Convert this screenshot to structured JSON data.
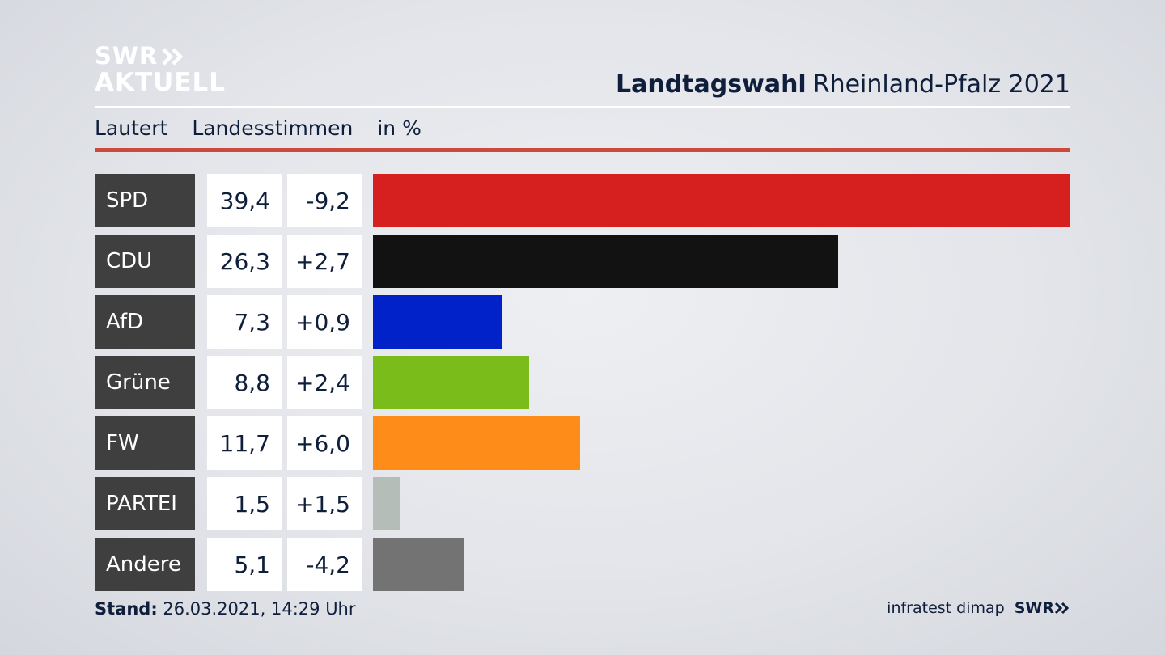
{
  "header": {
    "logo_line1": "SWR",
    "logo_line2": "AKTUELL",
    "title_bold": "Landtagswahl",
    "title_rest": "Rheinland-Pfalz 2021"
  },
  "subheader": {
    "region": "Lautert",
    "vote_type": "Landesstimmen",
    "unit": "in %"
  },
  "chart_data": {
    "type": "bar",
    "categories": [
      "SPD",
      "CDU",
      "AfD",
      "Grüne",
      "FW",
      "PARTEI",
      "Andere"
    ],
    "values": [
      39.4,
      26.3,
      7.3,
      8.8,
      11.7,
      1.5,
      5.1
    ],
    "value_labels": [
      "39,4",
      "26,3",
      "7,3",
      "8,8",
      "11,7",
      "1,5",
      "5,1"
    ],
    "change_labels": [
      "-9,2",
      "+2,7",
      "+0,9",
      "+2,4",
      "+6,0",
      "+1,5",
      "-4,2"
    ],
    "changes": [
      -9.2,
      2.7,
      0.9,
      2.4,
      6.0,
      1.5,
      -4.2
    ],
    "colors": [
      "#d61f1f",
      "#121212",
      "#0022c8",
      "#7abd1a",
      "#fd8c18",
      "#b4bdb8",
      "#737373"
    ],
    "orientation": "horizontal",
    "title": "Landtagswahl Rheinland-Pfalz 2021",
    "xlabel": "",
    "ylabel": "",
    "xlim": [
      0,
      39.4
    ]
  },
  "footer": {
    "stand_label": "Stand:",
    "stand_value": "26.03.2021, 14:29 Uhr",
    "source": "infratest dimap",
    "broadcaster": "SWR"
  }
}
